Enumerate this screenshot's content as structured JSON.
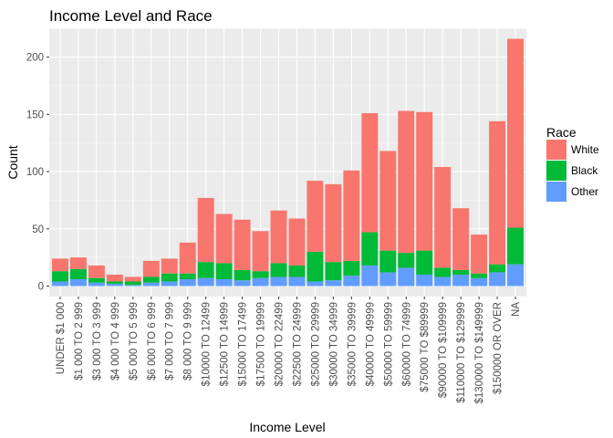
{
  "chart_data": {
    "type": "bar",
    "stacked": true,
    "title": "Income Level and Race",
    "xlabel": "Income Level",
    "ylabel": "Count",
    "ylim": [
      0,
      222
    ],
    "yticks": [
      0,
      50,
      100,
      150,
      200
    ],
    "grid": true,
    "legend": {
      "title": "Race",
      "placement": "right"
    },
    "categories": [
      "UNDER $1 000",
      "$1 000 TO 2 999",
      "$3 000 TO 3 999",
      "$4 000 TO 4 999",
      "$5 000 TO 5 999",
      "$6 000 TO 6 999",
      "$7 000 TO 7 999",
      "$8 000 TO 9 999",
      "$10000 TO 12499",
      "$12500 TO 14999",
      "$15000 TO 17499",
      "$17500 TO 19999",
      "$20000 TO 22499",
      "$22500 TO 24999",
      "$25000 TO 29999",
      "$30000 TO 34999",
      "$35000 TO 39999",
      "$40000 TO 49999",
      "$50000 TO 59999",
      "$60000 TO 74999",
      "$75000 TO $89999",
      "$90000 TO $109999",
      "$110000 TO $129999",
      "$130000 TO $149999",
      "$150000 OR OVER",
      "NA"
    ],
    "series": [
      {
        "name": "White",
        "color": "#F8766D",
        "values": [
          11,
          10,
          11,
          6,
          4,
          14,
          13,
          27,
          56,
          43,
          44,
          35,
          46,
          41,
          62,
          68,
          79,
          104,
          87,
          124,
          121,
          88,
          54,
          34,
          125,
          165
        ]
      },
      {
        "name": "Black",
        "color": "#00BA38",
        "values": [
          9,
          9,
          4,
          2,
          3,
          5,
          7,
          5,
          14,
          14,
          9,
          6,
          12,
          10,
          26,
          16,
          13,
          29,
          19,
          13,
          21,
          8,
          4,
          4,
          7,
          32
        ]
      },
      {
        "name": "Other",
        "color": "#619CFF",
        "values": [
          4,
          6,
          3,
          2,
          1,
          3,
          4,
          6,
          7,
          6,
          5,
          7,
          8,
          8,
          4,
          5,
          9,
          18,
          12,
          16,
          10,
          8,
          10,
          7,
          12,
          19
        ]
      }
    ],
    "legend_order": [
      "White",
      "Black",
      "Other"
    ]
  }
}
